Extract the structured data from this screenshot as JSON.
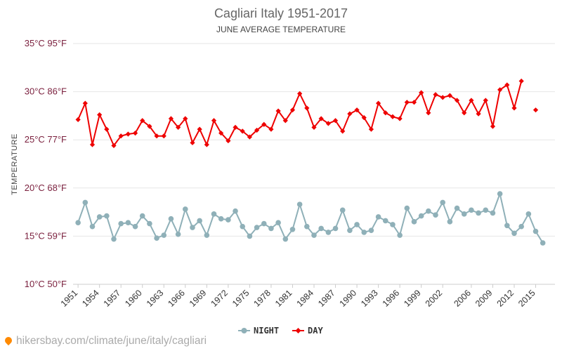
{
  "chart_data": {
    "type": "line",
    "title": "Cagliari Italy 1951-2017",
    "subtitle": "JUNE AVERAGE TEMPERATURE",
    "ylabel": "TEMPERATURE",
    "ylim": [
      10,
      35
    ],
    "xlim": [
      1950.3,
      2017.7
    ],
    "y_ticks": [
      {
        "value": 10,
        "label": "10°C 50°F"
      },
      {
        "value": 15,
        "label": "15°C 59°F"
      },
      {
        "value": 20,
        "label": "20°C 68°F"
      },
      {
        "value": 25,
        "label": "25°C 77°F"
      },
      {
        "value": 30,
        "label": "30°C 86°F"
      },
      {
        "value": 35,
        "label": "35°C 95°F"
      }
    ],
    "x_ticks": [
      1951,
      1954,
      1957,
      1960,
      1963,
      1966,
      1969,
      1972,
      1975,
      1978,
      1981,
      1984,
      1987,
      1990,
      1993,
      1996,
      1999,
      2002,
      2006,
      2009,
      2012,
      2015
    ],
    "grid": true,
    "legend_position": "bottom",
    "x": [
      1951,
      1952,
      1953,
      1954,
      1955,
      1956,
      1957,
      1958,
      1959,
      1960,
      1961,
      1962,
      1963,
      1964,
      1965,
      1966,
      1967,
      1968,
      1969,
      1970,
      1971,
      1972,
      1973,
      1974,
      1975,
      1976,
      1977,
      1978,
      1979,
      1980,
      1981,
      1982,
      1983,
      1984,
      1985,
      1986,
      1987,
      1988,
      1989,
      1990,
      1991,
      1992,
      1993,
      1994,
      1995,
      1996,
      1997,
      1998,
      1999,
      2000,
      2001,
      2002,
      2003,
      2004,
      2005,
      2006,
      2007,
      2008,
      2009,
      2010,
      2011,
      2012,
      2013,
      2014,
      2015,
      2016,
      2017
    ],
    "series": [
      {
        "name": "NIGHT",
        "color": "#8fb0b8",
        "marker": "circle",
        "values": [
          16.4,
          18.5,
          16.0,
          17.0,
          17.1,
          14.7,
          16.3,
          16.4,
          16.0,
          17.1,
          16.3,
          14.8,
          15.1,
          16.8,
          15.2,
          17.8,
          15.9,
          16.6,
          15.1,
          17.3,
          16.8,
          16.7,
          17.6,
          16.0,
          15.0,
          15.9,
          16.3,
          15.8,
          16.4,
          14.7,
          15.7,
          18.3,
          16.0,
          15.1,
          15.8,
          15.4,
          15.8,
          17.7,
          15.6,
          16.2,
          15.4,
          15.6,
          17.0,
          16.6,
          16.2,
          15.1,
          17.9,
          16.5,
          17.1,
          17.6,
          17.2,
          18.5,
          16.5,
          17.9,
          17.3,
          17.7,
          17.4,
          17.7,
          17.4,
          19.4,
          16.1,
          15.3,
          16.0,
          17.3,
          15.5,
          14.3,
          null
        ]
      },
      {
        "name": "DAY",
        "color": "#ee0000",
        "marker": "diamond",
        "values": [
          27.1,
          28.8,
          24.5,
          27.6,
          26.1,
          24.4,
          25.4,
          25.6,
          25.7,
          27.0,
          26.4,
          25.4,
          25.4,
          27.2,
          26.3,
          27.2,
          24.7,
          26.1,
          24.5,
          27.0,
          25.7,
          24.9,
          26.3,
          25.9,
          25.3,
          26.0,
          26.6,
          26.1,
          28.0,
          27.0,
          28.1,
          29.8,
          28.3,
          26.3,
          27.2,
          26.7,
          27.0,
          25.9,
          27.7,
          28.1,
          27.3,
          26.1,
          28.8,
          27.8,
          27.4,
          27.2,
          28.9,
          28.9,
          29.9,
          27.8,
          29.7,
          29.4,
          29.6,
          29.1,
          27.8,
          29.1,
          27.7,
          29.1,
          26.4,
          30.2,
          30.7,
          28.3,
          31.1,
          null,
          28.1,
          null,
          null
        ]
      }
    ]
  },
  "legend": {
    "night_label": "NIGHT",
    "day_label": "DAY"
  },
  "watermark": {
    "text": "hikersbay.com/climate/june/italy/cagliari",
    "icon": "location-pin-icon"
  }
}
